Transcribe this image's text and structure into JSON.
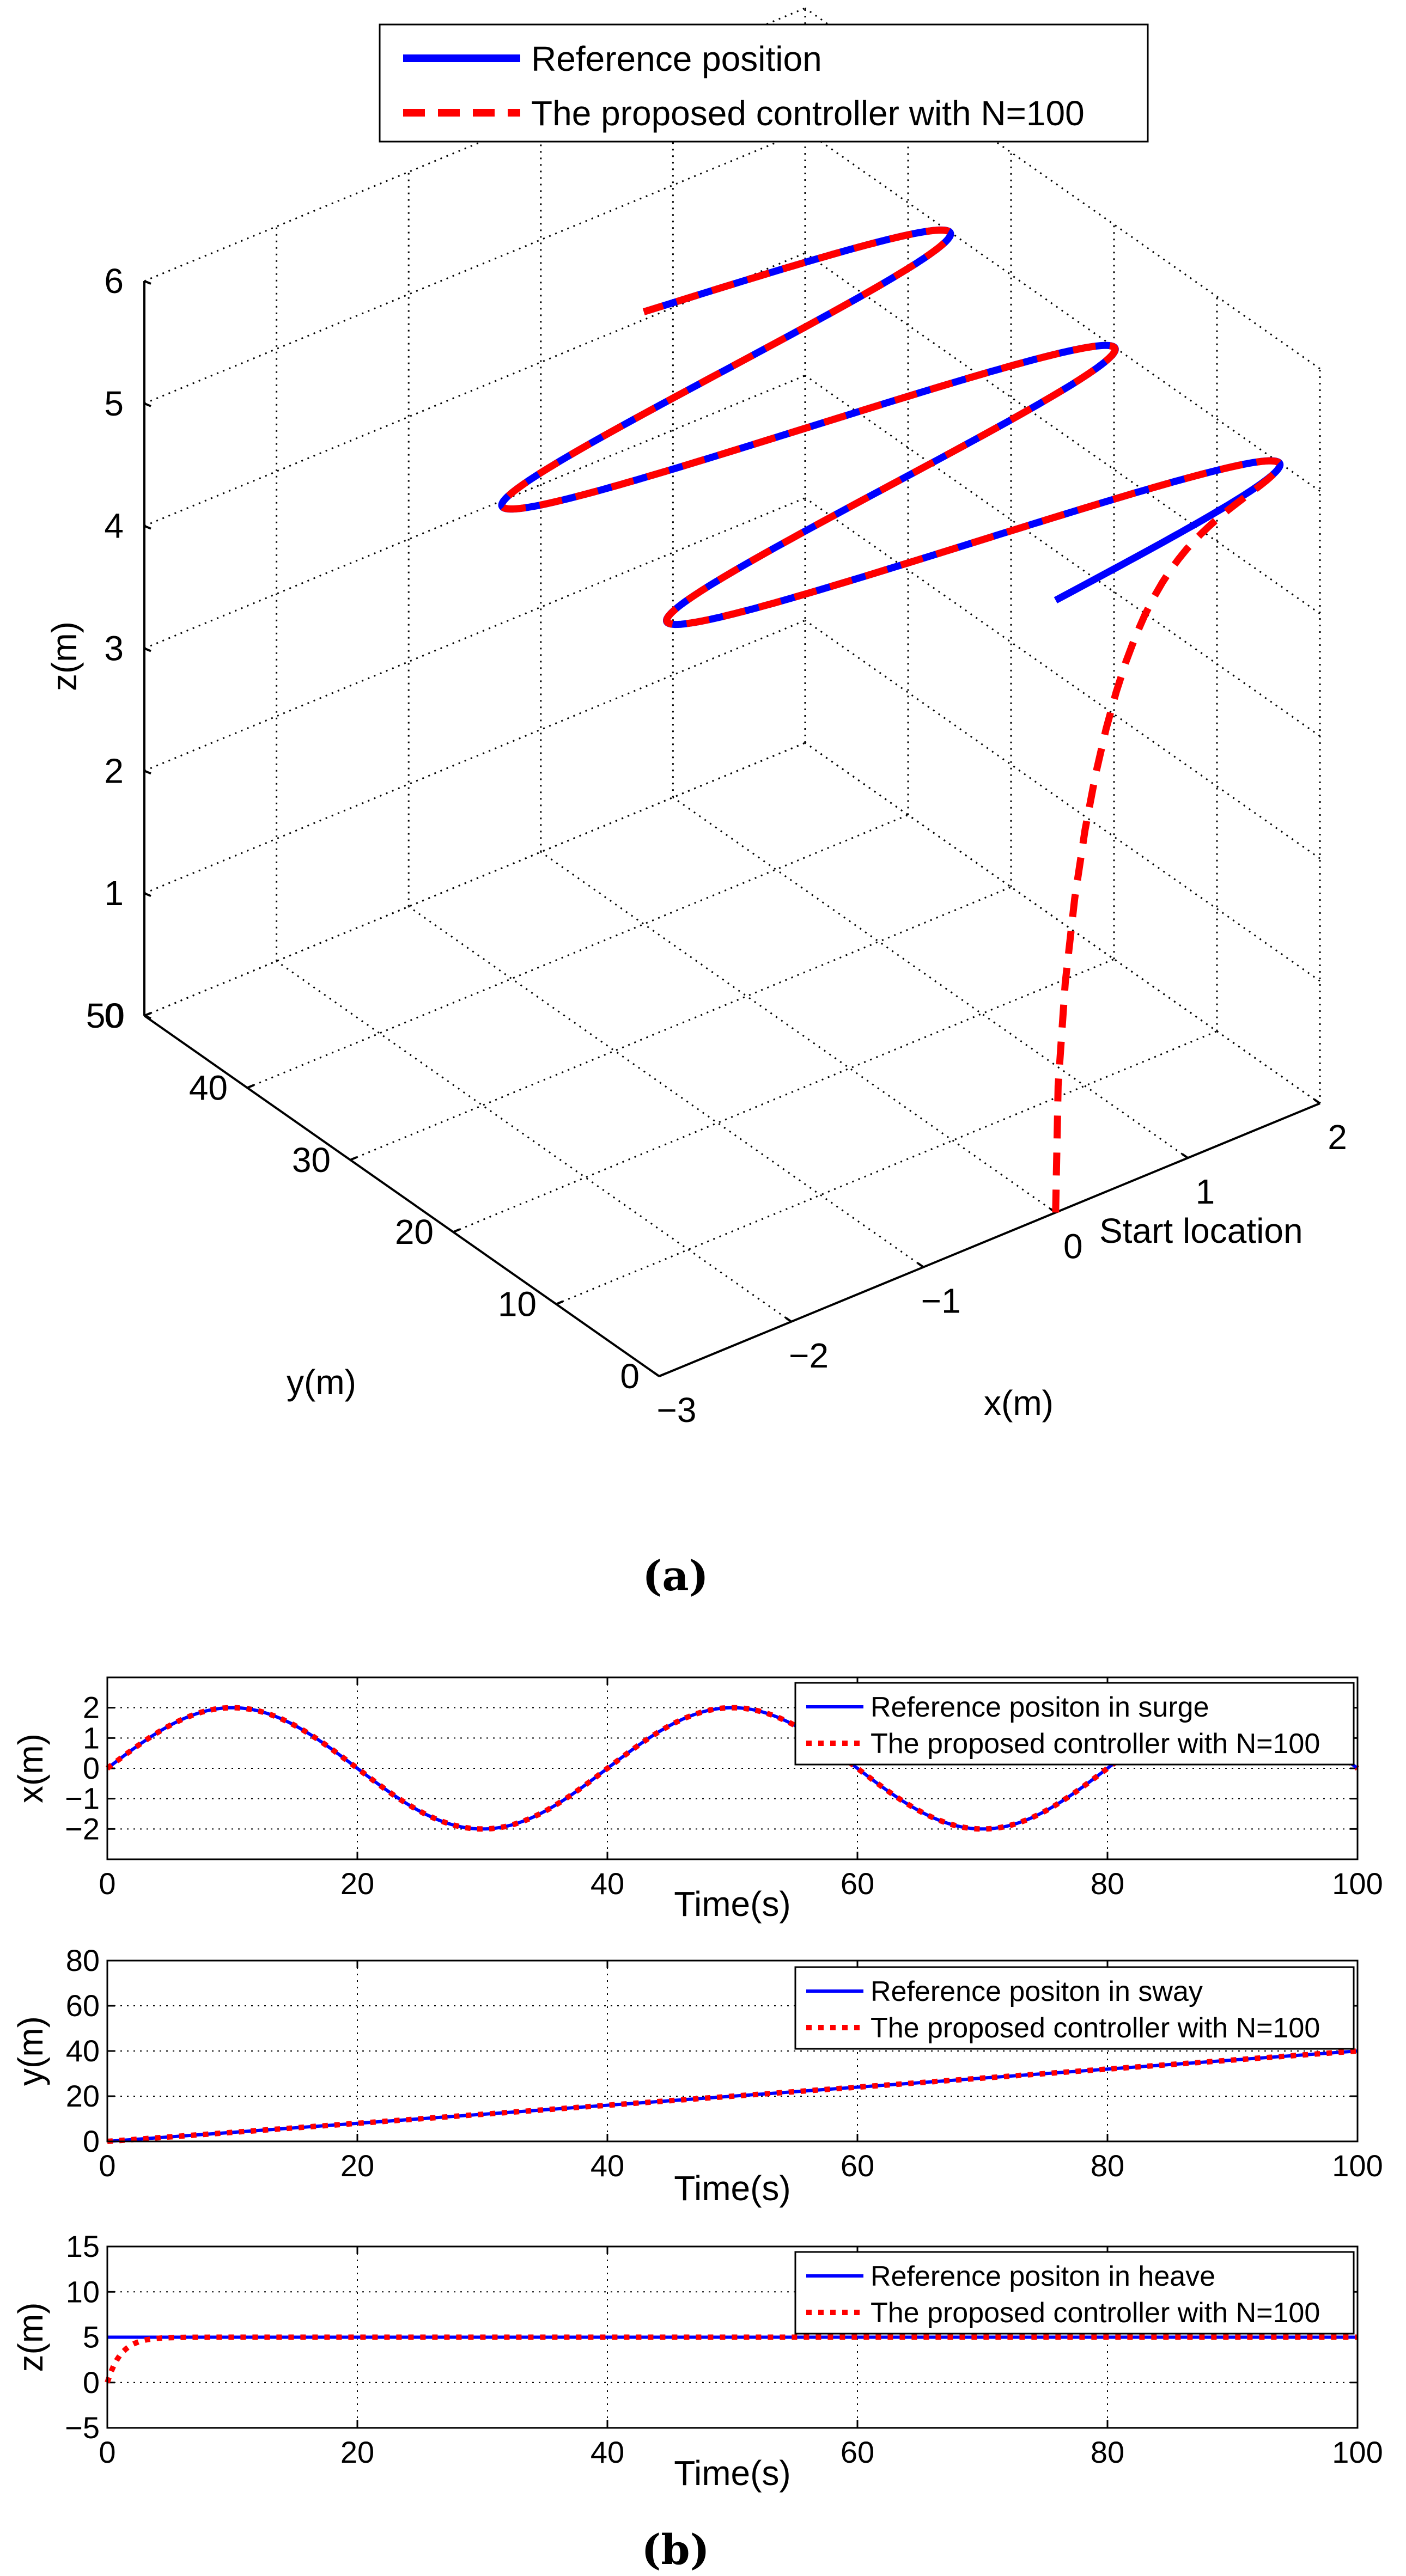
{
  "figure": {
    "panel_a_label": "(a)",
    "panel_b_label": "(b)"
  },
  "colors": {
    "reference": "#0000ff",
    "controller": "#ff0000",
    "grid": "#000000"
  },
  "chart_data": [
    {
      "id": "traj3d",
      "type": "line3d",
      "title": "",
      "xlabel": "x(m)",
      "ylabel": "y(m)",
      "zlabel": "z(m)",
      "xlim": [
        -3,
        2
      ],
      "ylim": [
        0,
        50
      ],
      "zlim": [
        0,
        6
      ],
      "xticks": [
        "−3",
        "−2",
        "−1",
        "0",
        "1",
        "2"
      ],
      "yticks": [
        "0",
        "10",
        "20",
        "30",
        "40",
        "50"
      ],
      "zticks": [
        "0",
        "1",
        "2",
        "3",
        "4",
        "5",
        "6"
      ],
      "annotation": "Start location",
      "legend": [
        "Reference position",
        "The proposed controller  with N=100"
      ],
      "legend_position": "top-center",
      "series": [
        {
          "name": "Reference position",
          "style": "solid",
          "t": [
            0,
            100
          ],
          "x": "2*sin(2*pi*t/40)",
          "y": "0.4*t",
          "z": 5
        },
        {
          "name": "The proposed controller  with N=100",
          "style": "dashed",
          "start": [
            0,
            0,
            0
          ],
          "rise_time_s": 4
        }
      ]
    },
    {
      "id": "surge",
      "type": "line",
      "xlabel": "Time(s)",
      "ylabel": "x(m)",
      "xlim": [
        0,
        100
      ],
      "ylim": [
        -3,
        3
      ],
      "xticks": [
        "0",
        "20",
        "40",
        "60",
        "80",
        "100"
      ],
      "yticks": [
        "−2",
        "−1",
        "0",
        "1",
        "2"
      ],
      "legend": [
        "Reference positon in surge",
        "The proposed controller with N=100"
      ],
      "legend_position": "top-right",
      "series": [
        {
          "name": "Reference positon in surge",
          "style": "solid",
          "x": [
            0,
            10,
            20,
            30,
            40,
            50,
            60,
            70,
            80,
            90,
            100
          ],
          "y": [
            0,
            2,
            0,
            -2,
            0,
            2,
            0,
            -2,
            0,
            2,
            0
          ]
        },
        {
          "name": "The proposed controller with N=100",
          "style": "dotted",
          "x": [
            0,
            10,
            20,
            30,
            40,
            50,
            60,
            70,
            80,
            90,
            100
          ],
          "y": [
            0,
            2,
            0,
            -2,
            0,
            2,
            0,
            -2,
            0,
            2,
            0
          ]
        }
      ]
    },
    {
      "id": "sway",
      "type": "line",
      "xlabel": "Time(s)",
      "ylabel": "y(m)",
      "xlim": [
        0,
        100
      ],
      "ylim": [
        0,
        80
      ],
      "xticks": [
        "0",
        "20",
        "40",
        "60",
        "80",
        "100"
      ],
      "yticks": [
        "0",
        "20",
        "40",
        "60",
        "80"
      ],
      "legend": [
        "Reference positon in sway",
        "The proposed controller with N=100"
      ],
      "legend_position": "top-right",
      "series": [
        {
          "name": "Reference positon in sway",
          "style": "solid",
          "x": [
            0,
            100
          ],
          "y": [
            0,
            40
          ]
        },
        {
          "name": "The proposed controller with N=100",
          "style": "dotted",
          "x": [
            0,
            100
          ],
          "y": [
            0,
            40
          ]
        }
      ]
    },
    {
      "id": "heave",
      "type": "line",
      "xlabel": "Time(s)",
      "ylabel": "z(m)",
      "xlim": [
        0,
        100
      ],
      "ylim": [
        -5,
        15
      ],
      "xticks": [
        "0",
        "20",
        "40",
        "60",
        "80",
        "100"
      ],
      "yticks": [
        "−5",
        "0",
        "5",
        "10",
        "15"
      ],
      "legend": [
        "Reference positon in heave",
        "The proposed controller with N=100"
      ],
      "legend_position": "top-right",
      "series": [
        {
          "name": "Reference positon in heave",
          "style": "solid",
          "x": [
            0,
            100
          ],
          "y": [
            5,
            5
          ]
        },
        {
          "name": "The proposed controller with N=100",
          "style": "dotted",
          "x": [
            0,
            0.5,
            1,
            2,
            3,
            4,
            6,
            100
          ],
          "y": [
            0,
            1.8,
            3.0,
            4.2,
            4.7,
            4.9,
            5,
            5
          ]
        }
      ]
    }
  ]
}
